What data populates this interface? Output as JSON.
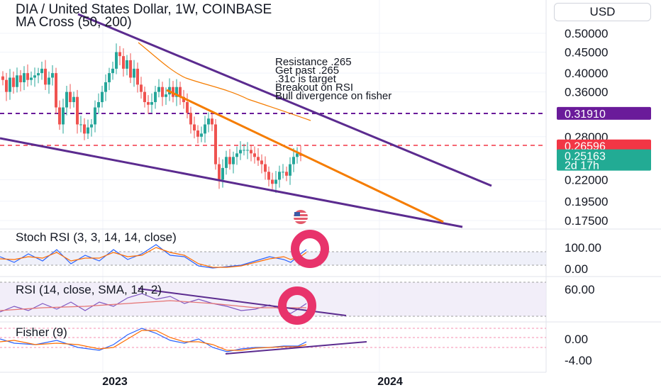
{
  "header": {
    "title": "DIA / United States Dollar, 1W, COINBASE",
    "indicator": "MA Cross (50, 200)",
    "currency": "USD"
  },
  "annotation_lines": [
    "Resistance .265",
    "Get past .265",
    ".31c is target",
    "Breakout on RSI",
    "Bull divergence on fisher"
  ],
  "price_axis": {
    "labels": [
      {
        "text": "0.50000",
        "value": 0.5
      },
      {
        "text": "0.45000",
        "value": 0.45
      },
      {
        "text": "0.40000",
        "value": 0.4
      },
      {
        "text": "0.36000",
        "value": 0.36
      },
      {
        "text": "0.28000",
        "value": 0.28
      },
      {
        "text": "0.22000",
        "value": 0.22
      },
      {
        "text": "0.19500",
        "value": 0.195
      },
      {
        "text": "0.17500",
        "value": 0.175
      }
    ],
    "tags": [
      {
        "text": "0.31910",
        "value": 0.3191,
        "color": "#6a1b9a"
      },
      {
        "text": "0.26596",
        "value": 0.26596,
        "color": "#f23645"
      },
      {
        "text": "0.25163",
        "value": 0.25163,
        "color": "#22ab94"
      }
    ],
    "countdown": "2d 17h"
  },
  "panes": {
    "stoch": {
      "label": "Stoch RSI (3, 3, 14, 14, close)",
      "axis": [
        "100.00",
        "0.00"
      ]
    },
    "rsi": {
      "label": "RSI (14, close, SMA, 14, 2)",
      "axis": [
        "60.00"
      ]
    },
    "fisher": {
      "label": "Fisher (9)",
      "axis": [
        "0.00",
        "-4.00"
      ]
    }
  },
  "x_axis": {
    "labels": [
      "2023",
      "2024"
    ]
  },
  "chart_data": {
    "type": "candlestick",
    "title": "DIA / United States Dollar, 1W, COINBASE",
    "y_scale": "log",
    "ylim": [
      0.17,
      0.54
    ],
    "closes": [
      0.385,
      0.36,
      0.39,
      0.37,
      0.395,
      0.38,
      0.4,
      0.385,
      0.39,
      0.395,
      0.4,
      0.41,
      0.375,
      0.39,
      0.4,
      0.33,
      0.3,
      0.33,
      0.36,
      0.34,
      0.35,
      0.3,
      0.3,
      0.285,
      0.295,
      0.3,
      0.33,
      0.34,
      0.36,
      0.38,
      0.4,
      0.41,
      0.45,
      0.44,
      0.41,
      0.43,
      0.39,
      0.41,
      0.375,
      0.36,
      0.34,
      0.335,
      0.34,
      0.36,
      0.37,
      0.35,
      0.355,
      0.37,
      0.35,
      0.37,
      0.35,
      0.34,
      0.32,
      0.3,
      0.29,
      0.28,
      0.285,
      0.3,
      0.31,
      0.3,
      0.24,
      0.22,
      0.235,
      0.25,
      0.24,
      0.25,
      0.255,
      0.26,
      0.26,
      0.26,
      0.255,
      0.25,
      0.245,
      0.24,
      0.23,
      0.22,
      0.215,
      0.22,
      0.23,
      0.23,
      0.225,
      0.24,
      0.25,
      0.255,
      0.25163
    ],
    "levels": [
      {
        "name": "target",
        "value": 0.3191,
        "color": "#6a1b9a"
      },
      {
        "name": "resistance",
        "value": 0.26596,
        "color": "#f23645"
      }
    ],
    "x_ticks": [
      "2023",
      "2024"
    ]
  }
}
